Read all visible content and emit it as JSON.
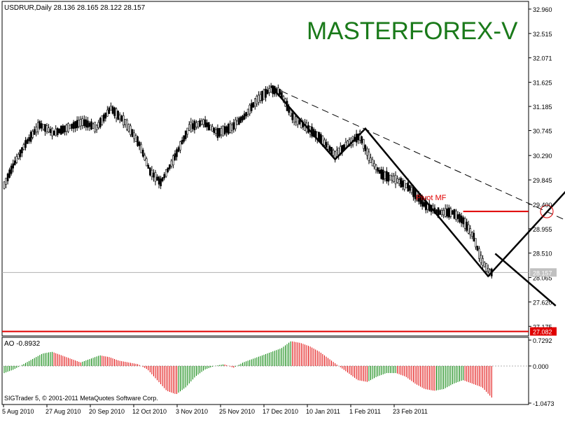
{
  "chart_data": [
    {
      "type": "candlestick",
      "header": "USDRUR,Daily  28.136 28.165 28.122 28.157",
      "watermark": "MASTERFOREX-V",
      "ylim": [
        27.0,
        33.1
      ],
      "y_ticks": [
        "32.960",
        "32.515",
        "32.071",
        "31.625",
        "31.185",
        "30.745",
        "30.290",
        "29.845",
        "29.400",
        "28.955",
        "28.510",
        "28.065",
        "27.620",
        "27.175"
      ],
      "current_price_label": "28.157",
      "current_price": 28.157,
      "support_level": 27.082,
      "support_label": "27.082",
      "pivot_label": "Pivot MF",
      "pivot_level": 29.27,
      "price_path_approx": [
        [
          0,
          29.75
        ],
        [
          5,
          30.1
        ],
        [
          12,
          30.5
        ],
        [
          20,
          30.85
        ],
        [
          28,
          30.7
        ],
        [
          36,
          30.8
        ],
        [
          44,
          30.9
        ],
        [
          52,
          30.8
        ],
        [
          60,
          31.15
        ],
        [
          68,
          30.9
        ],
        [
          76,
          30.5
        ],
        [
          82,
          30.0
        ],
        [
          88,
          29.8
        ],
        [
          95,
          30.2
        ],
        [
          104,
          30.8
        ],
        [
          112,
          30.9
        ],
        [
          120,
          30.7
        ],
        [
          128,
          30.8
        ],
        [
          135,
          31.0
        ],
        [
          142,
          31.3
        ],
        [
          150,
          31.5
        ],
        [
          155,
          31.45
        ],
        [
          162,
          31.0
        ],
        [
          170,
          30.8
        ],
        [
          178,
          30.6
        ],
        [
          186,
          30.3
        ],
        [
          193,
          30.5
        ],
        [
          200,
          30.65
        ],
        [
          206,
          30.2
        ],
        [
          212,
          29.95
        ],
        [
          220,
          29.85
        ],
        [
          228,
          29.7
        ],
        [
          236,
          29.4
        ],
        [
          244,
          29.25
        ],
        [
          252,
          29.25
        ],
        [
          258,
          29.1
        ],
        [
          264,
          28.8
        ],
        [
          268,
          28.4
        ],
        [
          272,
          28.2
        ],
        [
          274,
          28.157
        ]
      ]
    },
    {
      "type": "bar",
      "indicator_label": "AO -0.8932",
      "ylim": [
        -1.0473,
        0.7292
      ],
      "y_ticks": [
        "0.7292",
        "0.000",
        "-1.0473"
      ],
      "values_approx": [
        -0.2,
        -0.1,
        0.05,
        0.2,
        0.35,
        0.4,
        0.3,
        0.2,
        0.1,
        0.2,
        0.3,
        0.25,
        0.15,
        0.1,
        0.05,
        -0.1,
        -0.4,
        -0.7,
        -0.8,
        -0.6,
        -0.3,
        -0.1,
        0.0,
        0.05,
        -0.05,
        0.1,
        0.2,
        0.3,
        0.4,
        0.5,
        0.7,
        0.65,
        0.55,
        0.4,
        0.2,
        0.0,
        -0.2,
        -0.4,
        -0.45,
        -0.3,
        -0.2,
        -0.2,
        -0.3,
        -0.5,
        -0.65,
        -0.7,
        -0.65,
        -0.5,
        -0.4,
        -0.5,
        -0.6,
        -0.89
      ]
    }
  ],
  "x_labels": [
    "5 Aug 2010",
    "27 Aug 2010",
    "20 Sep 2010",
    "12 Oct 2010",
    "3 Nov 2010",
    "25 Nov 2010",
    "17 Dec 2010",
    "10 Jan 2011",
    "1 Feb 2011",
    "23 Feb 2011"
  ],
  "copyright": "SIGTrader 5, © 2001-2011 MetaQuotes Software Corp.",
  "colors": {
    "watermark": "#1a7a1a",
    "level_line": "#e00000",
    "pivot_text": "#e00000",
    "ao_up": "#008000",
    "ao_down": "#e00000",
    "price_tag_bg": "#c0c0c0",
    "level_tag_bg": "#e00000"
  }
}
